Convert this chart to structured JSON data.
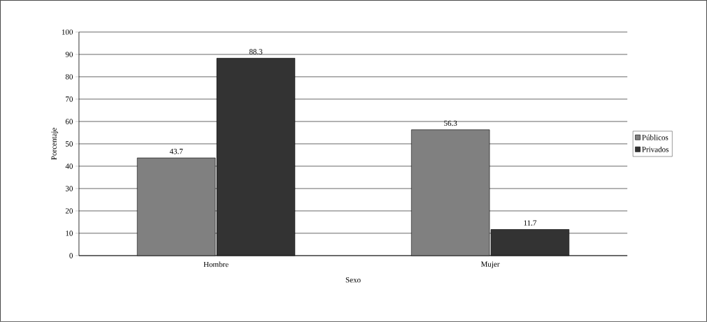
{
  "chart_data": {
    "type": "bar",
    "xlabel": "Sexo",
    "ylabel": "Porcentaje",
    "categories": [
      "Hombre",
      "Mujer"
    ],
    "series": [
      {
        "name": "Públicos",
        "color": "#808080",
        "values": [
          43.7,
          56.3
        ]
      },
      {
        "name": "Privados",
        "color": "#333333",
        "values": [
          88.3,
          11.7
        ]
      }
    ],
    "ylim": [
      0,
      100
    ],
    "yticks": [
      0,
      10,
      20,
      30,
      40,
      50,
      60,
      70,
      80,
      90,
      100
    ],
    "grid": "y",
    "legend": "right",
    "data_labels": true
  }
}
